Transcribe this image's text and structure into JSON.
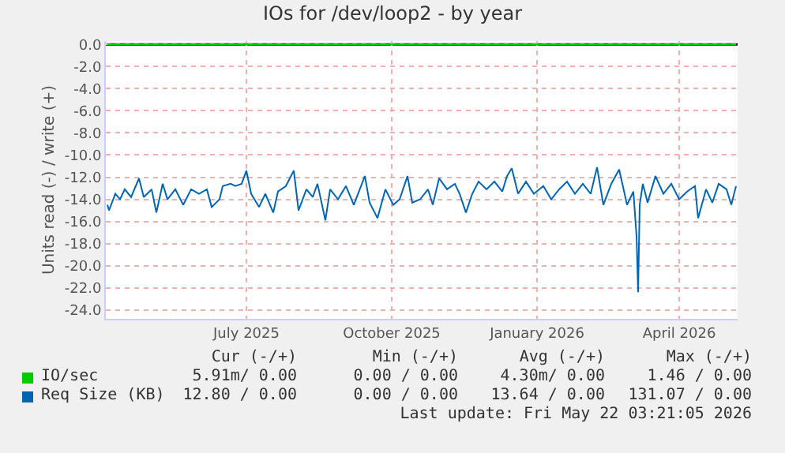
{
  "chart_data": {
    "type": "line",
    "title": "IOs for /dev/loop2 - by year",
    "ylabel": "Units read (-) / write (+)",
    "xlim": [
      "2025-04-18",
      "2026-05-23"
    ],
    "xticks": [
      {
        "value": "2025-07-16",
        "label": "July 2025"
      },
      {
        "value": "2025-10-16",
        "label": "October 2025"
      },
      {
        "value": "2026-01-16",
        "label": "January 2026"
      },
      {
        "value": "2026-04-16",
        "label": "April 2026"
      }
    ],
    "ylim": [
      -24.8,
      0.3
    ],
    "yticks": [
      {
        "value": 0,
        "label": "0.0"
      },
      {
        "value": -2,
        "label": "-2.0"
      },
      {
        "value": -4,
        "label": "-4.0"
      },
      {
        "value": -6,
        "label": "-6.0"
      },
      {
        "value": -8,
        "label": "-8.0"
      },
      {
        "value": -10,
        "label": "-10.0"
      },
      {
        "value": -12,
        "label": "-12.0"
      },
      {
        "value": -14,
        "label": "-14.0"
      },
      {
        "value": -16,
        "label": "-16.0"
      },
      {
        "value": -18,
        "label": "-18.0"
      },
      {
        "value": -20,
        "label": "-20.0"
      },
      {
        "value": -22,
        "label": "-22.0"
      },
      {
        "value": -24,
        "label": "-24.0"
      }
    ],
    "grid": true,
    "legend": "bottom",
    "marker": "none",
    "line_style": "solid",
    "ref_lines": [
      {
        "axis": "y",
        "value": 0,
        "color": "#000000"
      }
    ],
    "series": [
      {
        "name": "IO/sec",
        "color": "#00cc00",
        "x": [
          "2025-04-19",
          "2026-05-22"
        ],
        "values": [
          0,
          0
        ]
      },
      {
        "name": "Req Size (KB)",
        "color": "#0066b3",
        "x": [
          "2025-04-19",
          "2025-04-20",
          "2025-04-24",
          "2025-04-27",
          "2025-04-30",
          "2025-05-04",
          "2025-05-09",
          "2025-05-12",
          "2025-05-17",
          "2025-05-20",
          "2025-05-24",
          "2025-05-27",
          "2025-06-01",
          "2025-06-06",
          "2025-06-11",
          "2025-06-16",
          "2025-06-21",
          "2025-06-24",
          "2025-06-29",
          "2025-07-01",
          "2025-07-06",
          "2025-07-09",
          "2025-07-13",
          "2025-07-16",
          "2025-07-19",
          "2025-07-24",
          "2025-07-28",
          "2025-08-02",
          "2025-08-05",
          "2025-08-10",
          "2025-08-15",
          "2025-08-18",
          "2025-08-23",
          "2025-08-27",
          "2025-08-30",
          "2025-09-04",
          "2025-09-07",
          "2025-09-12",
          "2025-09-17",
          "2025-09-22",
          "2025-09-29",
          "2025-10-02",
          "2025-10-07",
          "2025-10-12",
          "2025-10-17",
          "2025-10-21",
          "2025-10-26",
          "2025-10-29",
          "2025-11-03",
          "2025-11-08",
          "2025-11-11",
          "2025-11-15",
          "2025-11-20",
          "2025-11-25",
          "2025-11-28",
          "2025-12-02",
          "2025-12-06",
          "2025-12-10",
          "2025-12-15",
          "2025-12-20",
          "2025-12-25",
          "2025-12-28",
          "2025-12-31",
          "2026-01-04",
          "2026-01-09",
          "2026-01-14",
          "2026-01-20",
          "2026-01-25",
          "2026-01-30",
          "2026-02-04",
          "2026-02-09",
          "2026-02-14",
          "2026-02-19",
          "2026-02-23",
          "2026-02-27",
          "2026-03-04",
          "2026-03-09",
          "2026-03-14",
          "2026-03-18",
          "2026-03-20",
          "2026-03-21",
          "2026-03-22",
          "2026-03-24",
          "2026-03-27",
          "2026-04-01",
          "2026-04-06",
          "2026-04-11",
          "2026-04-16",
          "2026-04-21",
          "2026-04-26",
          "2026-04-28",
          "2026-05-03",
          "2026-05-07",
          "2026-05-11",
          "2026-05-16",
          "2026-05-19",
          "2026-05-22"
        ],
        "values": [
          -14.5,
          -15.0,
          -13.5,
          -14.0,
          -13.1,
          -13.8,
          -12.1,
          -13.8,
          -13.1,
          -15.2,
          -12.6,
          -14.0,
          -13.1,
          -14.5,
          -13.1,
          -13.5,
          -13.1,
          -14.7,
          -14.0,
          -12.8,
          -12.6,
          -12.8,
          -12.6,
          -11.4,
          -13.5,
          -14.7,
          -13.5,
          -15.2,
          -13.3,
          -12.8,
          -11.4,
          -15.0,
          -13.1,
          -13.8,
          -12.6,
          -15.9,
          -13.1,
          -14.0,
          -12.8,
          -14.5,
          -11.9,
          -14.3,
          -15.7,
          -13.1,
          -14.5,
          -14.0,
          -11.9,
          -14.3,
          -14.0,
          -13.1,
          -14.5,
          -12.1,
          -13.1,
          -12.6,
          -13.5,
          -15.2,
          -13.5,
          -12.4,
          -13.1,
          -12.4,
          -13.3,
          -11.9,
          -11.2,
          -13.5,
          -12.4,
          -13.5,
          -12.8,
          -14.0,
          -13.1,
          -12.4,
          -13.5,
          -12.6,
          -13.5,
          -11.1,
          -14.5,
          -12.6,
          -11.3,
          -14.5,
          -13.3,
          -17.3,
          -22.4,
          -14.5,
          -12.6,
          -14.3,
          -11.9,
          -13.5,
          -12.6,
          -14.0,
          -13.3,
          -12.8,
          -15.7,
          -13.1,
          -14.3,
          -12.6,
          -13.1,
          -14.5,
          -12.8
        ]
      }
    ],
    "annotations": [
      "Cur (-/+)",
      "Min (-/+)",
      "Avg (-/+)",
      "Max (-/+)",
      "5.91m/ 0.00",
      "0.00 / 0.00",
      "4.30m/ 0.00",
      "1.46 / 0.00",
      "12.80 / 0.00",
      "0.00 / 0.00",
      "13.64 / 0.00",
      "131.07 / 0.00",
      "Last update: Fri May 22 03:21:05 2026"
    ]
  }
}
